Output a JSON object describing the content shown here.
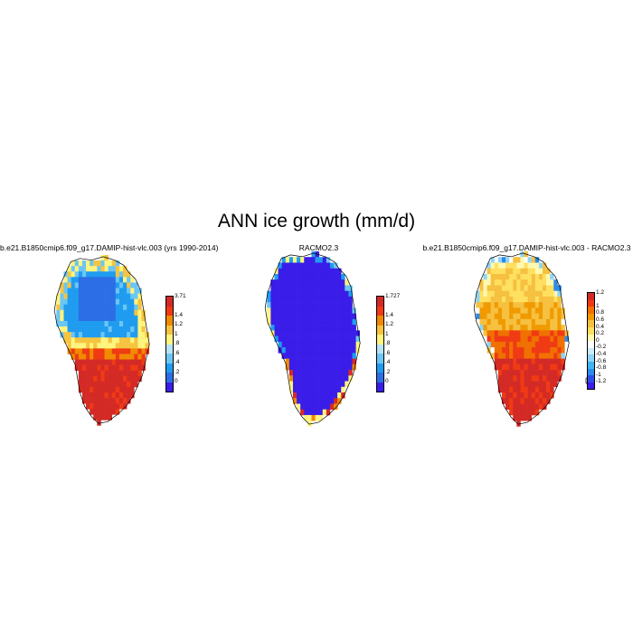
{
  "figure": {
    "title": "ANN ice growth (mm/d)"
  },
  "panels": [
    {
      "id": "model",
      "title": "b.e21.B1850cmip6.f09_g17.DAMIP-hist-vlc.003 (yrs 1990-2014)",
      "colors": [
        "#3a1de8",
        "#2c6ee6",
        "#1f9cf0",
        "#6cc6f4",
        "#b6e4f6",
        "#fff47d",
        "#f6c440",
        "#f08a00",
        "#f03a14",
        "#d42a26"
      ],
      "colorbar_labels": [
        "3.71",
        "1.4",
        "1.2",
        "1",
        ".8",
        ".6",
        ".4",
        ".2",
        "0"
      ],
      "pattern": "model"
    },
    {
      "id": "obs",
      "title": "RACMO2.3",
      "colors": [
        "#3a1de8",
        "#2c6ee6",
        "#1f9cf0",
        "#6cc6f4",
        "#b6e4f6",
        "#fff47d",
        "#f6c440",
        "#f08a00",
        "#f03a14",
        "#d42a26"
      ],
      "colorbar_labels": [
        "1.727",
        "1.4",
        "1.2",
        "1",
        ".8",
        ".6",
        ".4",
        ".2",
        "0"
      ],
      "pattern": "obs"
    },
    {
      "id": "diff",
      "title": "b.e21.B1850cmip6.f09_g17.DAMIP-hist-vlc.003 - RACMO2.3",
      "colors": [
        "#3a1de8",
        "#2c4ee8",
        "#2c8ae8",
        "#40b4f0",
        "#8ed4f6",
        "#c8ecf8",
        "#ffffff",
        "#fff8b0",
        "#ffe060",
        "#f6c040",
        "#f09a00",
        "#f07000",
        "#f03a14",
        "#d42a26"
      ],
      "colorbar_labels": [
        "1.2",
        "1",
        "0.8",
        "0.6",
        "0.4",
        "0.2",
        "0",
        "-0.2",
        "-0.4",
        "-0.6",
        "-0.8",
        "-1",
        "-1.2"
      ],
      "pattern": "diff"
    }
  ]
}
